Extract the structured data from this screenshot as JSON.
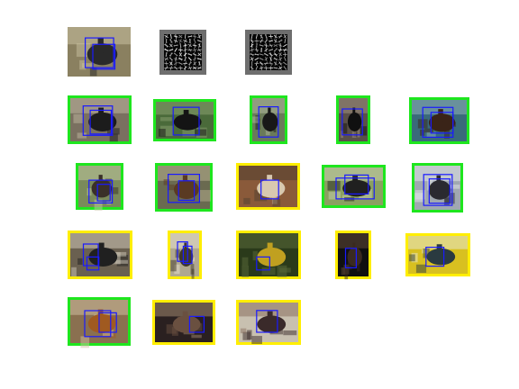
{
  "colors": {
    "background": "#ffffff",
    "correct_frame": "#1ee61e",
    "incorrect_frame": "#ffee00",
    "box": "#1a1aff"
  },
  "rows": [
    {
      "name": "templates",
      "tiles": [
        {
          "kind": "photo",
          "frame": "none",
          "palette": [
            "#8a8060",
            "#2a2a2a",
            "#c8c0a0"
          ]
        },
        {
          "kind": "hog",
          "frame": "none"
        },
        {
          "kind": "hog",
          "frame": "none"
        }
      ]
    },
    {
      "name": "detections-row-2",
      "tiles": [
        {
          "kind": "photo",
          "frame": "correct",
          "palette": [
            "#7a7060",
            "#1c1c1c",
            "#c0b8a0"
          ]
        },
        {
          "kind": "photo",
          "frame": "correct",
          "palette": [
            "#4a6a3a",
            "#141414",
            "#8aa070"
          ]
        },
        {
          "kind": "photo",
          "frame": "correct",
          "palette": [
            "#6a7a5a",
            "#181818",
            "#b0b8a0"
          ]
        },
        {
          "kind": "photo",
          "frame": "correct",
          "palette": [
            "#5a5048",
            "#101010",
            "#a09080"
          ]
        },
        {
          "kind": "photo",
          "frame": "correct",
          "palette": [
            "#3a6a7a",
            "#3a2418",
            "#90b0b8"
          ]
        }
      ]
    },
    {
      "name": "detections-row-3",
      "tiles": [
        {
          "kind": "photo",
          "frame": "correct",
          "palette": [
            "#7a8a5a",
            "#3a3028",
            "#c0c8a0"
          ]
        },
        {
          "kind": "photo",
          "frame": "correct",
          "palette": [
            "#6a6a50",
            "#5a3a22",
            "#b8b090"
          ]
        },
        {
          "kind": "photo",
          "frame": "incorrect",
          "palette": [
            "#8a5a3a",
            "#d8c8b0",
            "#504030"
          ]
        },
        {
          "kind": "photo",
          "frame": "correct",
          "palette": [
            "#8aa060",
            "#202020",
            "#c8d0b0"
          ]
        },
        {
          "kind": "photo",
          "frame": "correct",
          "palette": [
            "#a0a8b0",
            "#2a2a30",
            "#e0e4e8"
          ]
        }
      ]
    },
    {
      "name": "detections-row-4",
      "tiles": [
        {
          "kind": "photo",
          "frame": "incorrect",
          "palette": [
            "#6a6050",
            "#202020",
            "#d0c8b8"
          ]
        },
        {
          "kind": "photo",
          "frame": "incorrect",
          "palette": [
            "#b0a890",
            "#403828",
            "#e8e0d0"
          ]
        },
        {
          "kind": "photo",
          "frame": "incorrect",
          "palette": [
            "#2a3a1a",
            "#c0a020",
            "#5a6a3a"
          ]
        },
        {
          "kind": "photo",
          "frame": "incorrect",
          "palette": [
            "#101010",
            "#3a2a20",
            "#604838"
          ]
        },
        {
          "kind": "photo",
          "frame": "incorrect",
          "palette": [
            "#d8c020",
            "#2a3a40",
            "#e8e8d0"
          ]
        }
      ]
    },
    {
      "name": "detections-row-5",
      "tiles": [
        {
          "kind": "photo",
          "frame": "correct",
          "palette": [
            "#8a7050",
            "#a05a20",
            "#d0c0a0"
          ]
        },
        {
          "kind": "photo",
          "frame": "incorrect",
          "palette": [
            "#2a2020",
            "#6a5040",
            "#a08870"
          ]
        },
        {
          "kind": "photo",
          "frame": "incorrect",
          "palette": [
            "#c8c0b0",
            "#3a2a2a",
            "#8a7060"
          ]
        }
      ]
    }
  ]
}
